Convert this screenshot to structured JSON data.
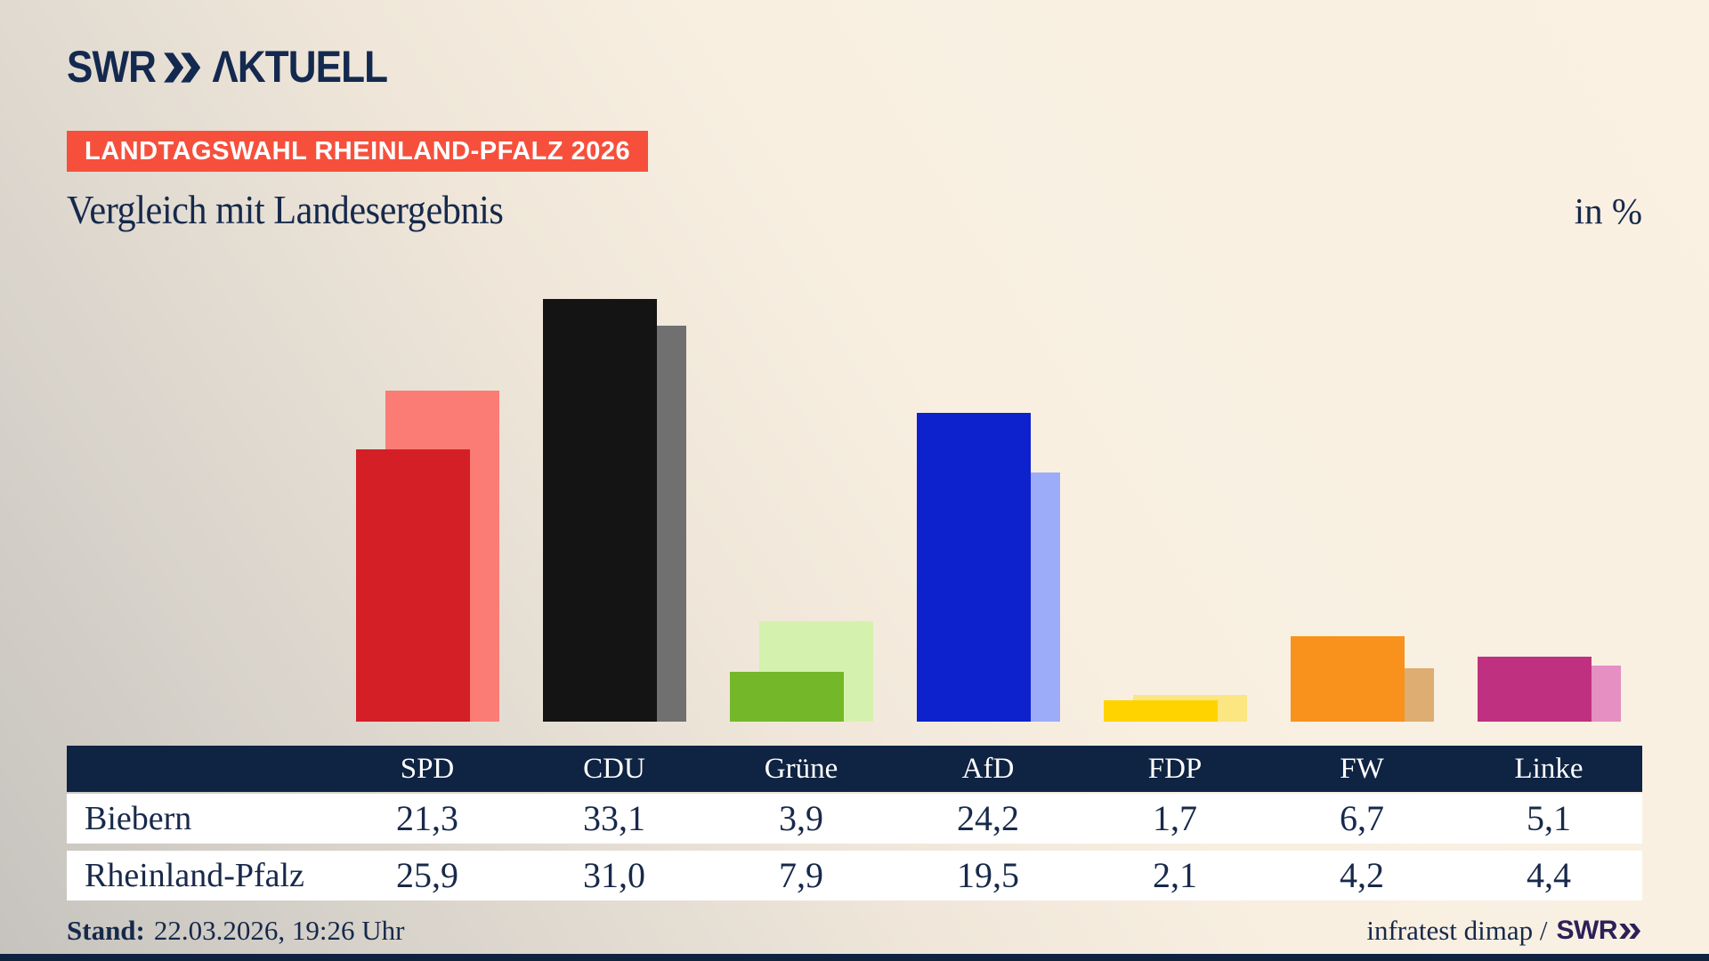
{
  "brand": {
    "swr": "SWR",
    "aktuell": "ΛKTUELL"
  },
  "badge": {
    "label": "LANDTAGSWAHL RHEINLAND-PFALZ 2026",
    "bg": "#f6503c"
  },
  "title": "Vergleich mit Landesergebnis",
  "unit_label": "in %",
  "footer": {
    "stand_label": "Stand:",
    "stand_value": "22.03.2026, 19:26 Uhr",
    "source": "infratest dimap /",
    "source_brand": "SWR"
  },
  "colors": {
    "navy_text": "#16294b",
    "table_header_bg": "#0f2342",
    "badge_bg": "#f6503c",
    "background_cream": "#faf1e3",
    "logo_navy": "#14294f",
    "source_brand_purple": "#2c2057"
  },
  "chart_data": {
    "type": "bar",
    "categories": [
      "SPD",
      "CDU",
      "Grüne",
      "AfD",
      "FDP",
      "FW",
      "Linke"
    ],
    "series": [
      {
        "name": "Biebern",
        "values": [
          21.3,
          33.1,
          3.9,
          24.2,
          1.7,
          6.7,
          5.1
        ]
      },
      {
        "name": "Rheinland-Pfalz",
        "values": [
          25.9,
          31.0,
          7.9,
          19.5,
          2.1,
          4.2,
          4.4
        ]
      }
    ],
    "colors_main": [
      "#d41f26",
      "#141414",
      "#74b829",
      "#0d22cd",
      "#ffd300",
      "#f8921d",
      "#bf3180"
    ],
    "colors_state": [
      "#fb7c74",
      "#707070",
      "#d4f2ad",
      "#9dacf8",
      "#fbe682",
      "#ddad72",
      "#e58fc3"
    ],
    "title": "Vergleich mit Landesergebnis",
    "xlabel": "",
    "ylabel": "in %",
    "ylim": [
      0,
      35
    ],
    "grid": false,
    "legend": "table-below",
    "number_format": "german-comma-1-decimal"
  }
}
